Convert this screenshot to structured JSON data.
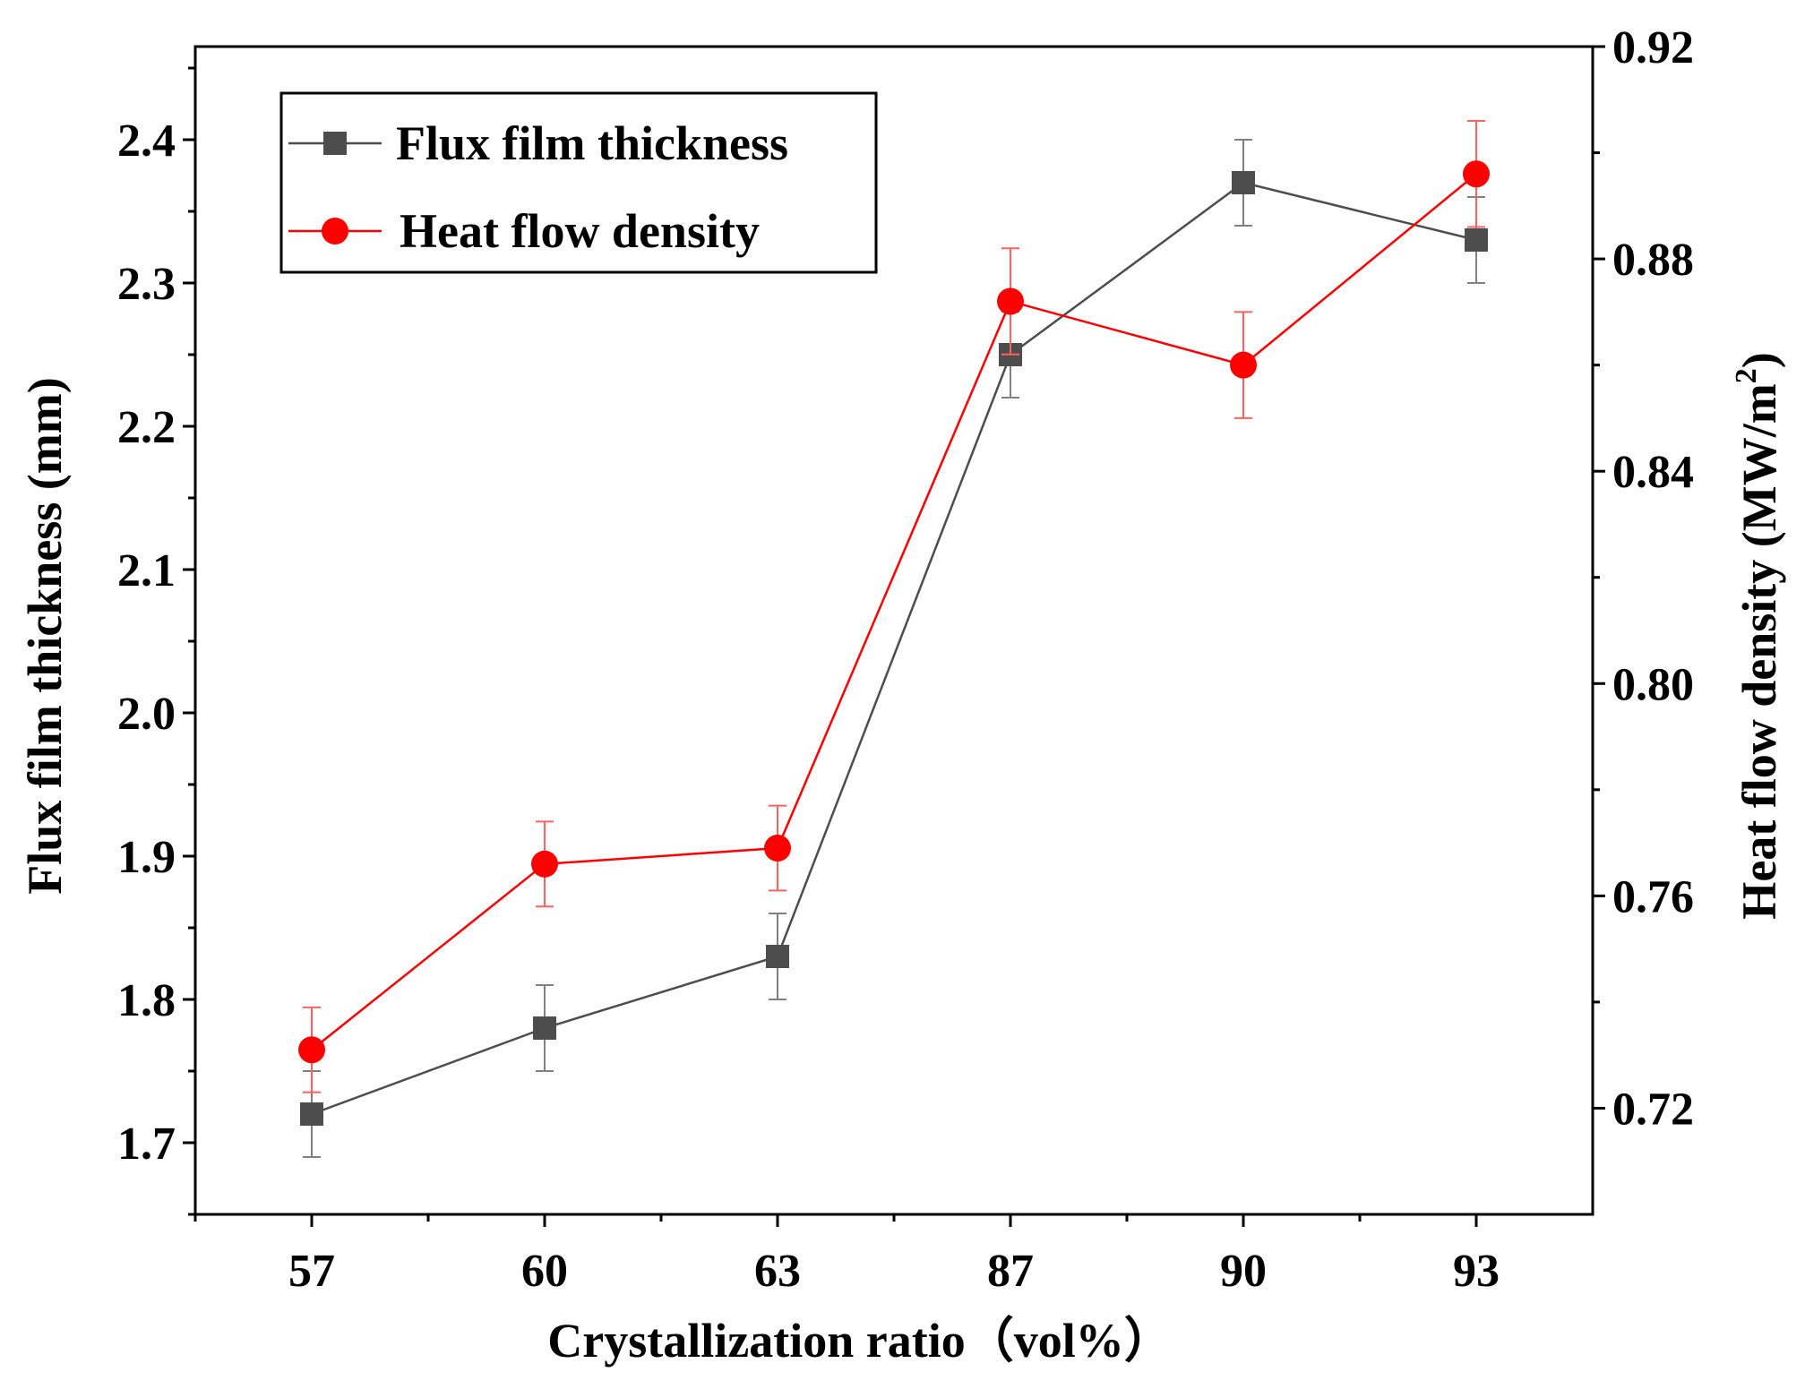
{
  "chart_data": {
    "type": "line",
    "categories": [
      "57",
      "60",
      "63",
      "87",
      "90",
      "93"
    ],
    "xlabel": "Crystallization ratio（vol%）",
    "ylabel_left": "Flux film thickness (mm)",
    "ylabel_right_main": "Heat flow density (MW/m",
    "ylabel_right_sup": "2",
    "ylabel_right_end": ")",
    "ylim_left": [
      1.65,
      2.465
    ],
    "ylim_right": [
      0.7,
      0.92
    ],
    "yticks_left": [
      "1.7",
      "1.8",
      "1.9",
      "2.0",
      "2.1",
      "2.2",
      "2.3",
      "2.4"
    ],
    "yticks_right": [
      "0.72",
      "0.76",
      "0.80",
      "0.84",
      "0.88",
      "0.92"
    ],
    "legend_position": "top-left",
    "series": [
      {
        "name": "Flux film thickness",
        "axis": "left",
        "marker": "square",
        "color": "#4d4d4d",
        "values": [
          1.72,
          1.78,
          1.83,
          2.25,
          2.37,
          2.33
        ],
        "errors": [
          0.03,
          0.03,
          0.03,
          0.03,
          0.03,
          0.03
        ]
      },
      {
        "name": "Heat flow density",
        "axis": "right",
        "marker": "circle",
        "color": "#ff0000",
        "values": [
          0.731,
          0.766,
          0.769,
          0.872,
          0.86,
          0.896
        ],
        "errors": [
          0.008,
          0.008,
          0.008,
          0.01,
          0.01,
          0.01
        ]
      }
    ]
  }
}
